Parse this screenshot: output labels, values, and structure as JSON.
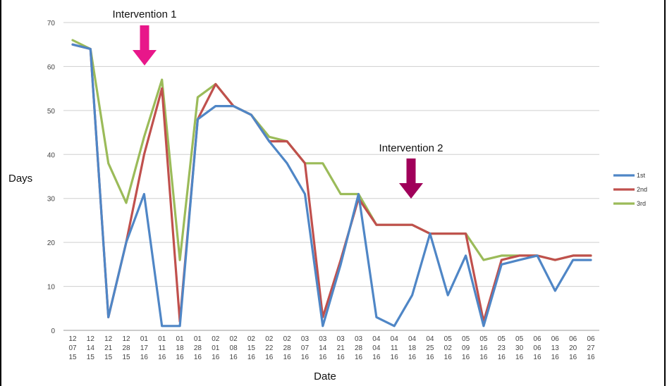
{
  "chart_data": {
    "type": "line",
    "xlabel": "Date",
    "ylabel": "Days",
    "ylim": [
      0,
      70
    ],
    "yticks": [
      "0",
      "10",
      "20",
      "30",
      "40",
      "50",
      "60",
      "70"
    ],
    "grid": true,
    "legend_position": "right",
    "categories": [
      [
        "12",
        "07",
        "15"
      ],
      [
        "12",
        "14",
        "15"
      ],
      [
        "12",
        "21",
        "15"
      ],
      [
        "12",
        "28",
        "15"
      ],
      [
        "01",
        "17",
        "16"
      ],
      [
        "01",
        "11",
        "16"
      ],
      [
        "01",
        "18",
        "16"
      ],
      [
        "01",
        "28",
        "16"
      ],
      [
        "02",
        "01",
        "16"
      ],
      [
        "02",
        "08",
        "16"
      ],
      [
        "02",
        "15",
        "16"
      ],
      [
        "02",
        "22",
        "16"
      ],
      [
        "02",
        "28",
        "16"
      ],
      [
        "03",
        "07",
        "16"
      ],
      [
        "03",
        "14",
        "16"
      ],
      [
        "03",
        "21",
        "16"
      ],
      [
        "03",
        "28",
        "16"
      ],
      [
        "04",
        "04",
        "16"
      ],
      [
        "04",
        "11",
        "16"
      ],
      [
        "04",
        "18",
        "16"
      ],
      [
        "04",
        "25",
        "16"
      ],
      [
        "05",
        "02",
        "16"
      ],
      [
        "05",
        "09",
        "16"
      ],
      [
        "05",
        "16",
        "16"
      ],
      [
        "05",
        "23",
        "16"
      ],
      [
        "05",
        "30",
        "16"
      ],
      [
        "06",
        "06",
        "16"
      ],
      [
        "06",
        "13",
        "16"
      ],
      [
        "06",
        "20",
        "16"
      ],
      [
        "06",
        "27",
        "16"
      ]
    ],
    "series": [
      {
        "name": "1st",
        "color": "#4f86c6",
        "values": [
          65,
          64,
          3,
          20,
          31,
          1,
          1,
          48,
          51,
          51,
          49,
          43,
          38,
          31,
          1,
          15,
          31,
          3,
          1,
          8,
          22,
          8,
          17,
          1,
          15,
          16,
          17,
          9,
          16,
          16
        ]
      },
      {
        "name": "2nd",
        "color": "#c0504d",
        "values": [
          65,
          64,
          3,
          20,
          40,
          55,
          2,
          48,
          56,
          51,
          49,
          43,
          43,
          38,
          3,
          16,
          30,
          24,
          24,
          24,
          22,
          22,
          22,
          2,
          16,
          17,
          17,
          16,
          17,
          17
        ]
      },
      {
        "name": "3rd",
        "color": "#9bbb59",
        "values": [
          66,
          64,
          38,
          29,
          44,
          57,
          16,
          53,
          56,
          51,
          49,
          44,
          43,
          38,
          38,
          31,
          31,
          24,
          24,
          24,
          22,
          22,
          22,
          16,
          17,
          17,
          17,
          16,
          17,
          17
        ]
      }
    ],
    "annotations": [
      {
        "label": "Intervention 1",
        "category_index": 4,
        "arrow_color": "#e8178a"
      },
      {
        "label": "Intervention 2",
        "category_index": 19,
        "arrow_color": "#a0005a"
      }
    ]
  }
}
